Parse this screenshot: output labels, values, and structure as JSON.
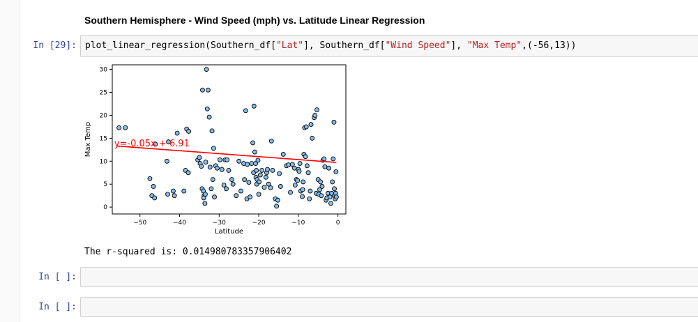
{
  "notebook": {
    "heading": "Southern Hemisphere - Wind Speed (mph) vs. Latitude Linear Regression",
    "cells": [
      {
        "prompt": "In [29]:",
        "code": {
          "p1": "plot_linear_regression(Southern_df[",
          "s1": "\"Lat\"",
          "p2": "], Southern_df[",
          "s2": "\"Wind Speed\"",
          "p3": "], ",
          "s3": "\"Max Temp\"",
          "p4": ",(-56,13))"
        }
      },
      {
        "prompt": "In [ ]:",
        "code": ""
      },
      {
        "prompt": "In [ ]:",
        "code": ""
      }
    ],
    "output_text": "The r-squared is: 0.014980783357906402"
  },
  "chart_data": {
    "type": "scatter",
    "xlabel": "Latitude",
    "ylabel": "Max Temp",
    "xlim": [
      -57,
      2
    ],
    "ylim": [
      -1.5,
      31
    ],
    "xticks": [
      -50,
      -40,
      -30,
      -20,
      -10,
      0
    ],
    "yticks": [
      0,
      5,
      10,
      15,
      20,
      25,
      30
    ],
    "annotation": "y=-0.05x + 6.91",
    "annotation_color": "#ff0000",
    "point_color": "#87bbe8",
    "point_edge": "#000000",
    "line_color": "#ff0000",
    "regression": {
      "slope": -0.05,
      "intercept": 6.91,
      "x_range": [
        -55.7,
        -0.4
      ]
    },
    "points": [
      [
        -55.3,
        17.3
      ],
      [
        -53.7,
        17.3
      ],
      [
        -47.5,
        6.2
      ],
      [
        -47,
        2.5
      ],
      [
        -46.6,
        4.5
      ],
      [
        -46.3,
        2.0
      ],
      [
        -46.1,
        13.7
      ],
      [
        -43.2,
        10.0
      ],
      [
        -43.0,
        2.8
      ],
      [
        -42.8,
        14.2
      ],
      [
        -41.6,
        3.5
      ],
      [
        -41.3,
        2.5
      ],
      [
        -40.6,
        16.1
      ],
      [
        -38.9,
        3.5
      ],
      [
        -38.2,
        17.0
      ],
      [
        -38.5,
        8.0
      ],
      [
        -37.8,
        7.5
      ],
      [
        -37.7,
        16.5
      ],
      [
        -35.4,
        10.3
      ],
      [
        -35.0,
        10.8
      ],
      [
        -34.8,
        9.5
      ],
      [
        -34.5,
        8.9
      ],
      [
        -34.3,
        4.0
      ],
      [
        -34.2,
        25.5
      ],
      [
        -34.0,
        3.5
      ],
      [
        -33.8,
        2.5
      ],
      [
        -33.6,
        0.8
      ],
      [
        -33.4,
        9.8
      ],
      [
        -33.2,
        30.0
      ],
      [
        -33.0,
        21.4
      ],
      [
        -32.8,
        25.5
      ],
      [
        -33.9,
        2.0
      ],
      [
        -33.5,
        2.8
      ],
      [
        -32.5,
        19.6
      ],
      [
        -32.3,
        8.7
      ],
      [
        -32.0,
        4.0
      ],
      [
        -31.8,
        16.6
      ],
      [
        -31.6,
        6.0
      ],
      [
        -31.4,
        12.8
      ],
      [
        -31.2,
        2.2
      ],
      [
        -30.9,
        9.0
      ],
      [
        -30.5,
        8.5
      ],
      [
        -29.8,
        10.3
      ],
      [
        -29.3,
        8.2
      ],
      [
        -28.8,
        4.8
      ],
      [
        -28.5,
        10.3
      ],
      [
        -28.2,
        4.0
      ],
      [
        -28.0,
        10.3
      ],
      [
        -27.6,
        8.0
      ],
      [
        -26.8,
        6.0
      ],
      [
        -26.5,
        5.0
      ],
      [
        -25.7,
        2.5
      ],
      [
        -25.0,
        10.0
      ],
      [
        -24.5,
        3.5
      ],
      [
        -23.8,
        9.5
      ],
      [
        -23.6,
        6.0
      ],
      [
        -23.3,
        21.0
      ],
      [
        -23.0,
        1.8
      ],
      [
        -22.9,
        9.3
      ],
      [
        -22.5,
        5.4
      ],
      [
        -22.2,
        2.2
      ],
      [
        -21.8,
        9.5
      ],
      [
        -21.5,
        14.0
      ],
      [
        -21.3,
        7.5
      ],
      [
        -21.2,
        22.0
      ],
      [
        -21.0,
        12.0
      ],
      [
        -20.8,
        9.5
      ],
      [
        -20.7,
        6.5
      ],
      [
        -20.6,
        8.0
      ],
      [
        -20.5,
        5.0
      ],
      [
        -20.4,
        6.0
      ],
      [
        -20.2,
        10.2
      ],
      [
        -20.0,
        2.8
      ],
      [
        -19.9,
        5.5
      ],
      [
        -19.6,
        7.0
      ],
      [
        -19.2,
        8.0
      ],
      [
        -18.6,
        4.3
      ],
      [
        -18.2,
        6.5
      ],
      [
        -18.0,
        7.5
      ],
      [
        -17.8,
        8.2
      ],
      [
        -17.5,
        5.0
      ],
      [
        -17.0,
        4.2
      ],
      [
        -16.8,
        14.4
      ],
      [
        -16.5,
        8.0
      ],
      [
        -15.8,
        1.8
      ],
      [
        -15.5,
        0.2
      ],
      [
        -15.2,
        1.5
      ],
      [
        -14.8,
        7.3
      ],
      [
        -14.5,
        4.5
      ],
      [
        -13.8,
        11.5
      ],
      [
        -13.0,
        9.0
      ],
      [
        -12.5,
        9.2
      ],
      [
        -12.0,
        3.2
      ],
      [
        -11.5,
        9.3
      ],
      [
        -11.0,
        8.5
      ],
      [
        -10.8,
        4.8
      ],
      [
        -10.5,
        6.0
      ],
      [
        -10.2,
        5.8
      ],
      [
        -10.0,
        8.2
      ],
      [
        -9.8,
        7.8
      ],
      [
        -9.6,
        9.5
      ],
      [
        -9.4,
        3.5
      ],
      [
        -9.0,
        2.3
      ],
      [
        -8.9,
        3.8
      ],
      [
        -8.8,
        5.5
      ],
      [
        -8.6,
        11.5
      ],
      [
        -8.4,
        17.3
      ],
      [
        -8.2,
        11.0
      ],
      [
        -8.0,
        17.5
      ],
      [
        -7.8,
        9.0
      ],
      [
        -7.5,
        7.5
      ],
      [
        -7.2,
        1.8
      ],
      [
        -7.0,
        3.5
      ],
      [
        -6.8,
        18.0
      ],
      [
        -6.5,
        15.0
      ],
      [
        -6.0,
        19.5
      ],
      [
        -5.8,
        20.0
      ],
      [
        -5.5,
        3.0
      ],
      [
        -5.3,
        21.2
      ],
      [
        -5.0,
        6.0
      ],
      [
        -4.8,
        2.8
      ],
      [
        -4.6,
        3.8
      ],
      [
        -4.4,
        5.5
      ],
      [
        -4.2,
        2.5
      ],
      [
        -4.0,
        4.5
      ],
      [
        -3.8,
        10.2
      ],
      [
        -3.5,
        10.5
      ],
      [
        -3.3,
        8.8
      ],
      [
        -3.0,
        1.5
      ],
      [
        -2.8,
        2.0
      ],
      [
        -2.5,
        3.0
      ],
      [
        -2.3,
        8.5
      ],
      [
        -2.0,
        2.2
      ],
      [
        -1.8,
        0.8
      ],
      [
        -1.6,
        3.0
      ],
      [
        -1.4,
        5.5
      ],
      [
        -1.2,
        10.5
      ],
      [
        -1.0,
        18.5
      ],
      [
        -0.9,
        4.0
      ],
      [
        -0.8,
        2.5
      ],
      [
        -0.7,
        1.8
      ],
      [
        -0.6,
        3.0
      ],
      [
        -0.5,
        7.7
      ],
      [
        -0.4,
        2.2
      ]
    ]
  }
}
